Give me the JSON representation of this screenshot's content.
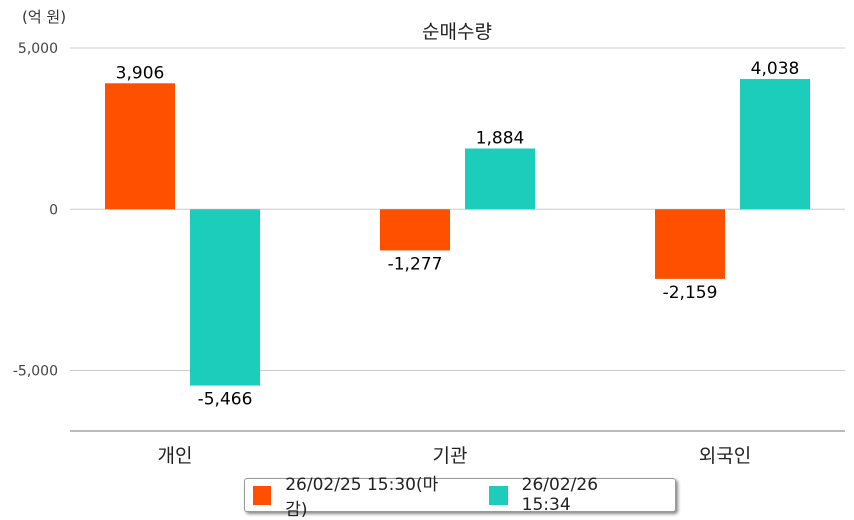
{
  "chart_data": {
    "type": "bar",
    "title": "순매수량",
    "unit_label": "(억 원)",
    "categories": [
      "개인",
      "기관",
      "외국인"
    ],
    "series": [
      {
        "name": "26/02/25 15:30(마감)",
        "color": "#FF5000",
        "values": [
          3906,
          -1277,
          -2159
        ],
        "labels": [
          "3,906",
          "-1,277",
          "-2,159"
        ]
      },
      {
        "name": "26/02/26 15:34",
        "color": "#1DCDBC",
        "values": [
          -5466,
          1884,
          4038
        ],
        "labels": [
          "-5,466",
          "1,884",
          "4,038"
        ]
      }
    ],
    "yticks": [
      5000,
      0,
      -5000
    ],
    "ytick_labels": [
      "5,000",
      "0",
      "-5,000"
    ],
    "ylim": [
      -6875,
      5000
    ],
    "grid": true,
    "legend": "bottom"
  }
}
